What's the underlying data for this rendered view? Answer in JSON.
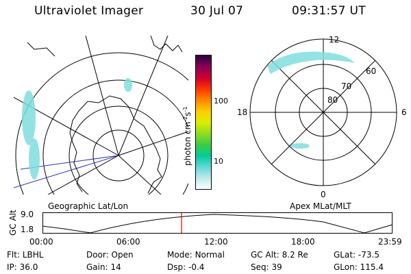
{
  "header": {
    "instrument": "Ultraviolet Imager",
    "date": "30 Jul 07",
    "time": "09:31:57 UT"
  },
  "left_panel": {
    "caption": "Geographic Lat/Lon"
  },
  "right_panel": {
    "caption": "Apex MLat/MLT",
    "mlt_labels": {
      "top": "12",
      "bottom": "0",
      "left": "18",
      "right": "6"
    },
    "lat_labels": [
      "80",
      "70",
      "60"
    ]
  },
  "colorbar": {
    "unit_label": "photon cm",
    "unit_exp1": "-2",
    "unit_s": "s",
    "unit_exp2": "-1",
    "tick_labels": [
      "100",
      "10"
    ],
    "colors": [
      "#ffffff",
      "#e6eeee",
      "#c0e8e8",
      "#80e0e0",
      "#40d8d0",
      "#00cc99",
      "#40cc40",
      "#90dd20",
      "#ddee00",
      "#ffcc00",
      "#ff9900",
      "#ff5500",
      "#ee1100",
      "#cc0033",
      "#990055",
      "#550055",
      "#220033"
    ]
  },
  "altitude_plot": {
    "ylabel": "GC Alt",
    "yticks": [
      "9.0",
      "1.8"
    ],
    "xticks": [
      "00:00",
      "06:00",
      "12:00",
      "18:00",
      "23:59"
    ],
    "current_time_fraction": 0.397,
    "color_current": "#dd0000"
  },
  "footer": {
    "row1": [
      {
        "label": "Flt:",
        "value": "LBHL"
      },
      {
        "label": "Door:",
        "value": "Open"
      },
      {
        "label": "Mode:",
        "value": "Normal"
      },
      {
        "label": "GC Alt:",
        "value": "8.2 Re"
      },
      {
        "label": "GLat:",
        "value": "-73.5"
      }
    ],
    "row2": [
      {
        "label": "IP:",
        "value": "36.0"
      },
      {
        "label": "Gain:",
        "value": "14"
      },
      {
        "label": "Dsp:",
        "value": "-0.4"
      },
      {
        "label": "Seq:",
        "value": "39"
      },
      {
        "label": "GLon:",
        "value": "115.4"
      }
    ]
  }
}
